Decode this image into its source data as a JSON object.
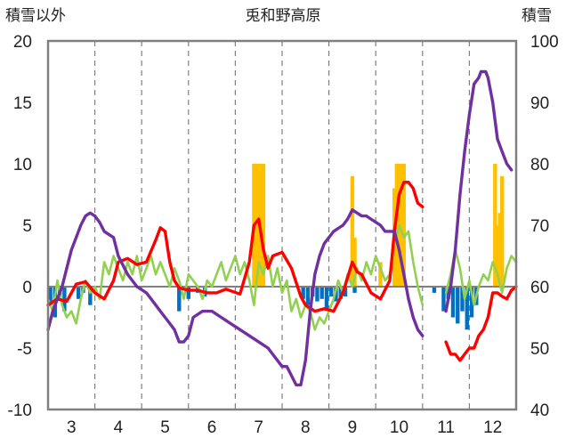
{
  "chart_data": {
    "type": "line",
    "title": "兎和野高原",
    "ylabel_left": "積雪以外",
    "ylabel_right": "積雪",
    "ylim_left": [
      -10,
      20
    ],
    "ylim_right": [
      40,
      100
    ],
    "yticks_left": [
      "-10",
      "-5",
      "0",
      "5",
      "10",
      "15",
      "20"
    ],
    "yticks_right": [
      "40",
      "50",
      "60",
      "70",
      "80",
      "90",
      "100"
    ],
    "xlim": [
      2.5,
      12.5
    ],
    "xticks": [
      "3",
      "4",
      "5",
      "6",
      "7",
      "8",
      "9",
      "10",
      "11",
      "12"
    ],
    "grid": "vertical dashed",
    "colors": {
      "snow_depth": "#7030a0",
      "red_series": "#ff0000",
      "green_series": "#92d050",
      "orange_bars": "#ffc000",
      "blue_bars": "#0070c0",
      "axis": "#808080",
      "grid": "#808080"
    },
    "series": [
      {
        "axis": "right",
        "color": "#7030a0",
        "x": [
          2.5,
          2.6,
          2.7,
          2.8,
          2.9,
          3.0,
          3.1,
          3.2,
          3.3,
          3.4,
          3.5,
          3.6,
          3.7,
          3.8,
          3.9,
          4.0,
          4.2,
          4.4,
          4.6,
          4.8,
          4.9,
          5.0,
          5.1,
          5.2,
          5.3,
          5.4,
          5.5,
          5.6,
          5.8,
          6.0,
          6.2,
          6.4,
          6.6,
          6.8,
          7.0,
          7.2,
          7.4,
          7.5,
          7.6,
          7.8,
          7.9,
          8.0,
          8.1,
          8.2,
          8.3,
          8.4,
          8.6,
          8.8,
          8.9,
          9.0,
          9.1,
          9.2,
          9.3,
          9.4,
          9.6,
          9.7,
          9.8,
          9.9,
          10.0,
          10.1,
          10.2,
          10.3,
          10.4,
          10.5
        ],
        "values": [
          53,
          56,
          58,
          60,
          63,
          66,
          68,
          70,
          71.5,
          72,
          71.5,
          70.5,
          69,
          68.5,
          68,
          65,
          62,
          60,
          59,
          57,
          56,
          55,
          54,
          53,
          51,
          51,
          52,
          55,
          56,
          56,
          55,
          54,
          53,
          52,
          51,
          50,
          48,
          47,
          47,
          44,
          44,
          48,
          56,
          62,
          65,
          67,
          69,
          70,
          71,
          72.5,
          72,
          71.5,
          71.5,
          71,
          70,
          69,
          69,
          69,
          66,
          62,
          58,
          55,
          53,
          52
        ]
      },
      {
        "axis": "right",
        "color": "#7030a0",
        "x": [
          11.0,
          11.1,
          11.2,
          11.3,
          11.4,
          11.5,
          11.6,
          11.7,
          11.75,
          11.8,
          11.85,
          11.9,
          12.0,
          12.1,
          12.2,
          12.3,
          12.4
        ],
        "values": [
          56,
          60,
          66,
          75,
          82,
          88,
          93,
          94,
          95,
          95,
          95,
          94,
          90,
          84,
          82,
          80,
          79
        ]
      },
      {
        "axis": "left",
        "color": "#ff0000",
        "x": [
          2.5,
          2.7,
          2.9,
          3.1,
          3.3,
          3.5,
          3.7,
          3.9,
          4.0,
          4.2,
          4.4,
          4.6,
          4.8,
          4.9,
          5.0,
          5.1,
          5.2,
          5.3,
          5.5,
          5.7,
          5.9,
          6.1,
          6.3,
          6.6,
          6.8,
          6.9,
          7.0,
          7.1,
          7.2,
          7.3,
          7.5,
          7.7,
          7.9,
          8.0,
          8.2,
          8.4,
          8.6,
          8.8,
          9.0,
          9.1,
          9.2,
          9.4,
          9.6,
          9.8,
          9.9,
          10.0,
          10.1,
          10.2,
          10.3,
          10.4,
          10.5
        ],
        "values": [
          -1.5,
          -1.0,
          -1.2,
          0.2,
          0.4,
          -0.5,
          -1.0,
          0.5,
          2.0,
          2.3,
          1.8,
          2.0,
          3.8,
          4.8,
          4.5,
          2.0,
          0.5,
          -0.1,
          -0.3,
          -0.3,
          -0.5,
          -0.5,
          -0.2,
          -0.6,
          2.0,
          5.0,
          5.5,
          3.0,
          1.5,
          2.5,
          2.8,
          1.5,
          -0.8,
          -1.5,
          -2.0,
          -1.8,
          -2.0,
          -0.5,
          2.0,
          1.2,
          1.0,
          -0.5,
          -1.0,
          0.5,
          4.5,
          7.5,
          8.5,
          8.5,
          8.0,
          6.8,
          6.5
        ]
      },
      {
        "axis": "left",
        "color": "#ff0000",
        "x": [
          11.0,
          11.1,
          11.2,
          11.3,
          11.4,
          11.5,
          11.6,
          11.7,
          11.8,
          11.9,
          12.0,
          12.1,
          12.2,
          12.3,
          12.4,
          12.5
        ],
        "values": [
          -4.5,
          -5.5,
          -5.5,
          -6.0,
          -5.5,
          -5.0,
          -5.0,
          -4.0,
          -3.5,
          -2.5,
          -0.5,
          -0.5,
          -0.8,
          -1.0,
          -0.3,
          0.0
        ]
      },
      {
        "axis": "left",
        "color": "#92d050",
        "x": [
          2.5,
          2.6,
          2.7,
          2.8,
          2.9,
          3.0,
          3.1,
          3.2,
          3.3,
          3.4,
          3.5,
          3.6,
          3.7,
          3.8,
          3.9,
          4.0,
          4.1,
          4.2,
          4.3,
          4.4,
          4.5,
          4.6,
          4.7,
          4.8,
          4.9,
          5.0,
          5.1,
          5.2,
          5.3,
          5.4,
          5.5,
          5.6,
          5.7,
          5.8,
          5.9,
          6.0,
          6.1,
          6.2,
          6.3,
          6.4,
          6.5,
          6.6,
          6.7,
          6.8,
          6.9,
          7.0,
          7.1,
          7.2,
          7.3,
          7.4,
          7.5,
          7.6,
          7.7,
          7.8,
          7.9,
          8.0,
          8.1,
          8.2,
          8.3,
          8.4,
          8.5,
          8.6,
          8.7,
          8.8,
          8.9,
          9.0,
          9.1,
          9.2,
          9.3,
          9.4,
          9.5,
          9.6,
          9.7,
          9.8,
          9.9,
          10.0,
          10.1,
          10.2,
          10.3,
          10.4,
          10.5
        ],
        "values": [
          -1.0,
          -2.0,
          0.5,
          -1.5,
          -2.5,
          -2.0,
          -3.0,
          -1.0,
          0.5,
          -0.5,
          0.0,
          -1.0,
          2.0,
          1.0,
          2.5,
          1.5,
          0.5,
          2.0,
          1.0,
          2.5,
          0.5,
          1.5,
          2.5,
          1.0,
          2.0,
          1.0,
          0.0,
          1.5,
          0.5,
          -1.0,
          1.0,
          0.5,
          0.0,
          -1.0,
          0.5,
          0.0,
          1.0,
          2.0,
          0.5,
          1.5,
          2.5,
          1.0,
          2.0,
          0.5,
          -1.5,
          2.0,
          1.0,
          2.5,
          0.0,
          1.5,
          -0.5,
          0.5,
          -2.0,
          -1.0,
          -2.5,
          -1.5,
          -2.0,
          -3.5,
          -2.5,
          -3.0,
          -2.0,
          -1.0,
          0.5,
          -0.5,
          1.0,
          0.0,
          1.5,
          0.5,
          2.0,
          1.0,
          2.5,
          1.5,
          0.5,
          1.0,
          3.5,
          5.0,
          4.0,
          4.5,
          2.0,
          0.0,
          -1.5
        ]
      },
      {
        "axis": "left",
        "color": "#92d050",
        "x": [
          11.0,
          11.1,
          11.2,
          11.3,
          11.4,
          11.5,
          11.6,
          11.7,
          11.8,
          11.9,
          12.0,
          12.1,
          12.2,
          12.3,
          12.4,
          12.5
        ],
        "values": [
          -0.5,
          1.0,
          3.0,
          1.5,
          -1.0,
          0.5,
          -1.5,
          0.0,
          1.0,
          0.5,
          2.0,
          1.0,
          -0.5,
          1.5,
          2.5,
          2.0
        ]
      }
    ],
    "bars": [
      {
        "axis": "left",
        "color": "#ffc000",
        "x": [
          6.9,
          6.95,
          7.0,
          7.05,
          7.1,
          9.0,
          9.05,
          9.6,
          9.9,
          9.95,
          10.0,
          10.05,
          10.1,
          12.05,
          12.1,
          12.15,
          12.2
        ],
        "values": [
          10,
          10,
          10,
          10,
          10,
          9,
          4,
          2,
          8,
          10,
          10,
          10,
          10,
          10,
          5,
          6,
          9
        ]
      },
      {
        "axis": "left",
        "color": "#0070c0",
        "x": [
          2.55,
          2.65,
          2.75,
          2.85,
          3.15,
          3.25,
          3.4,
          5.3,
          5.5,
          5.7,
          5.85,
          7.95,
          8.05,
          8.15,
          8.25,
          8.35,
          8.45,
          8.55,
          8.65,
          8.75,
          8.85,
          9.05,
          10.75,
          10.95,
          11.05,
          11.15,
          11.25,
          11.35,
          11.45,
          11.55,
          11.65
        ],
        "values": [
          -1.5,
          -2.5,
          -1.0,
          -2.0,
          -1.0,
          -0.5,
          -1.5,
          -2.0,
          -1.0,
          -0.5,
          -0.8,
          -1.0,
          -1.5,
          -0.8,
          -1.2,
          -1.0,
          -1.8,
          -0.8,
          -1.2,
          -1.0,
          -0.8,
          -0.5,
          -0.5,
          -2.0,
          -1.0,
          -2.5,
          -3.0,
          -2.0,
          -3.5,
          -2.5,
          -1.5
        ]
      }
    ]
  }
}
